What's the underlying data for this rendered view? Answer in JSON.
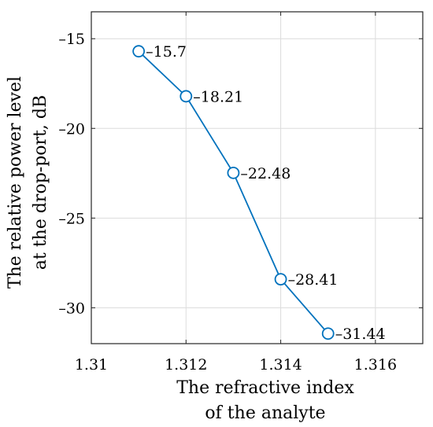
{
  "chart_data": {
    "type": "line",
    "x": [
      1.311,
      1.312,
      1.313,
      1.314,
      1.315
    ],
    "series": [
      {
        "values": [
          -15.7,
          -18.21,
          -22.48,
          -28.41,
          -31.44
        ],
        "color": "#0072BD",
        "marker": "circle"
      }
    ],
    "data_labels": [
      "–15.7",
      "–18.21",
      "–22.48",
      "–28.41",
      "–31.44"
    ],
    "xlabel": [
      "The refractive index",
      "of the analyte"
    ],
    "ylabel": [
      "The relative power level",
      "at the drop-port, dB"
    ],
    "xlim": [
      1.31,
      1.317
    ],
    "ylim": [
      -32,
      -13.5
    ],
    "xticks": [
      1.31,
      1.312,
      1.314,
      1.316
    ],
    "xtick_labels": [
      "1.31",
      "1.312",
      "1.314",
      "1.316"
    ],
    "yticks": [
      -15,
      -20,
      -25,
      -30
    ],
    "ytick_labels": [
      "–15",
      "–20",
      "–25",
      "–30"
    ],
    "grid": true,
    "legend": "none"
  }
}
